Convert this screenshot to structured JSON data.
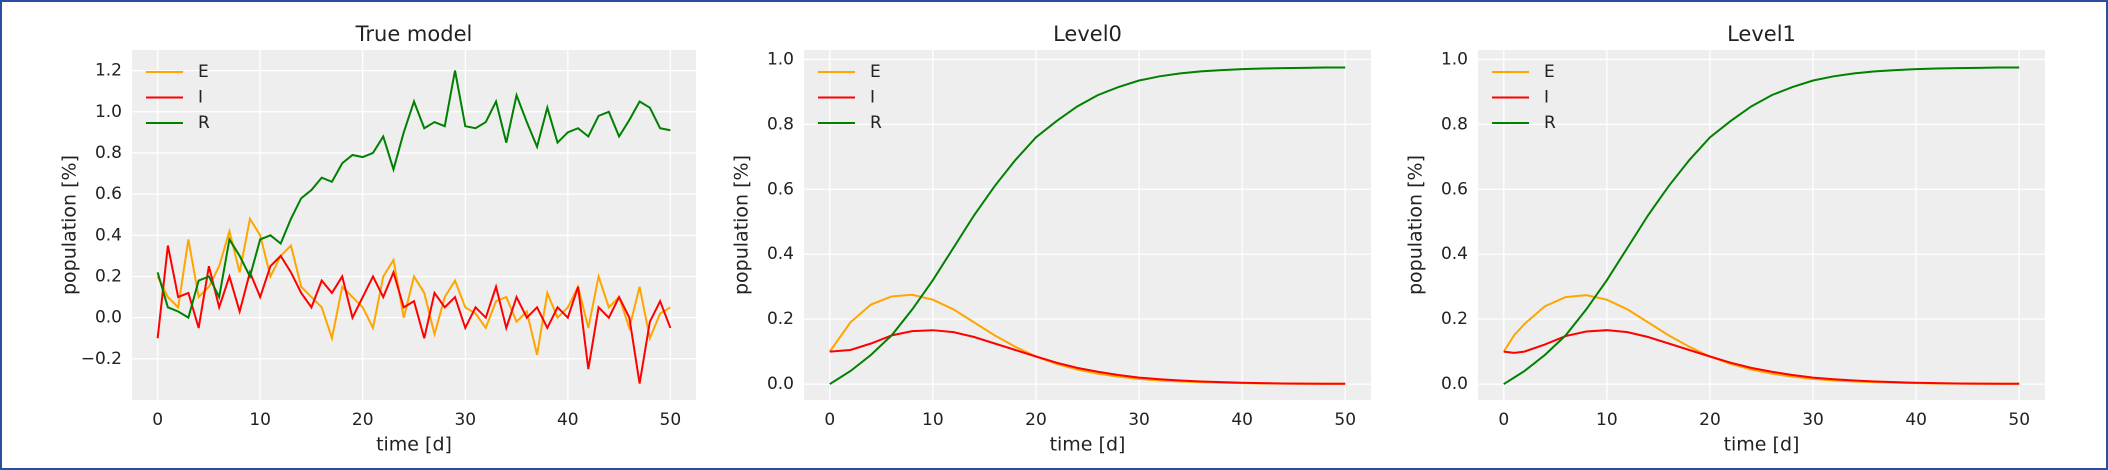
{
  "chart_data": [
    {
      "type": "line",
      "title": "True model",
      "xlabel": "time [d]",
      "ylabel": "population [%]",
      "x": [
        0,
        1,
        2,
        3,
        4,
        5,
        6,
        7,
        8,
        9,
        10,
        11,
        12,
        13,
        14,
        15,
        16,
        17,
        18,
        19,
        20,
        21,
        22,
        23,
        24,
        25,
        26,
        27,
        28,
        29,
        30,
        31,
        32,
        33,
        34,
        35,
        36,
        37,
        38,
        39,
        40,
        41,
        42,
        43,
        44,
        45,
        46,
        47,
        48,
        49,
        50
      ],
      "series": [
        {
          "name": "E",
          "color": "#ffa500",
          "values": [
            0.2,
            0.1,
            0.05,
            0.38,
            0.1,
            0.15,
            0.25,
            0.42,
            0.22,
            0.48,
            0.4,
            0.2,
            0.3,
            0.35,
            0.15,
            0.1,
            0.05,
            -0.1,
            0.15,
            0.1,
            0.05,
            -0.05,
            0.2,
            0.28,
            0.0,
            0.2,
            0.12,
            -0.08,
            0.1,
            0.18,
            0.05,
            0.02,
            -0.05,
            0.08,
            0.1,
            -0.02,
            0.03,
            -0.18,
            0.12,
            0.0,
            0.05,
            0.15,
            -0.05,
            0.2,
            0.05,
            0.1,
            -0.05,
            0.15,
            -0.1,
            0.02,
            0.05
          ]
        },
        {
          "name": "I",
          "color": "#ff0000",
          "values": [
            -0.1,
            0.35,
            0.1,
            0.12,
            -0.05,
            0.25,
            0.05,
            0.2,
            0.03,
            0.22,
            0.1,
            0.25,
            0.3,
            0.22,
            0.12,
            0.05,
            0.18,
            0.12,
            0.2,
            0.0,
            0.1,
            0.2,
            0.1,
            0.22,
            0.05,
            0.08,
            -0.1,
            0.12,
            0.05,
            0.1,
            -0.05,
            0.05,
            0.0,
            0.15,
            -0.05,
            0.1,
            0.0,
            0.05,
            -0.05,
            0.05,
            0.0,
            0.15,
            -0.25,
            0.05,
            0.0,
            0.1,
            0.0,
            -0.32,
            -0.02,
            0.08,
            -0.05
          ]
        },
        {
          "name": "R",
          "color": "#008000",
          "values": [
            0.22,
            0.05,
            0.03,
            0.0,
            0.18,
            0.2,
            0.1,
            0.38,
            0.3,
            0.2,
            0.38,
            0.4,
            0.36,
            0.48,
            0.58,
            0.62,
            0.68,
            0.66,
            0.75,
            0.79,
            0.78,
            0.8,
            0.88,
            0.72,
            0.9,
            1.05,
            0.92,
            0.95,
            0.93,
            1.2,
            0.93,
            0.92,
            0.95,
            1.05,
            0.85,
            1.08,
            0.95,
            0.83,
            1.02,
            0.85,
            0.9,
            0.92,
            0.88,
            0.98,
            1.0,
            0.88,
            0.96,
            1.05,
            1.02,
            0.92,
            0.91
          ]
        }
      ],
      "xlim": [
        -2.5,
        52.5
      ],
      "ylim": [
        -0.4,
        1.3
      ],
      "xticks": [
        0,
        10,
        20,
        30,
        40,
        50
      ],
      "yticks": [
        {
          "value": -0.2,
          "label": "−0.2"
        },
        {
          "value": 0,
          "label": "0.0"
        },
        0.2,
        0.4,
        0.6,
        0.8,
        {
          "value": 1,
          "label": "1.0"
        },
        1.2
      ],
      "grid": true,
      "legend": "upper left"
    },
    {
      "type": "line",
      "title": "Level0",
      "xlabel": "time [d]",
      "ylabel": "population [%]",
      "x": [
        0,
        2,
        4,
        6,
        8,
        10,
        12,
        14,
        16,
        18,
        20,
        22,
        24,
        26,
        28,
        30,
        32,
        34,
        36,
        38,
        40,
        42,
        44,
        46,
        48,
        50
      ],
      "series": [
        {
          "name": "E",
          "color": "#ffa500",
          "values": [
            0.1,
            0.19,
            0.245,
            0.27,
            0.275,
            0.26,
            0.23,
            0.19,
            0.15,
            0.115,
            0.085,
            0.062,
            0.045,
            0.032,
            0.023,
            0.016,
            0.011,
            0.008,
            0.006,
            0.004,
            0.003,
            0.002,
            0.0015,
            0.001,
            0.001,
            0.001
          ]
        },
        {
          "name": "I",
          "color": "#ff0000",
          "values": [
            0.1,
            0.105,
            0.125,
            0.15,
            0.163,
            0.166,
            0.16,
            0.145,
            0.125,
            0.105,
            0.085,
            0.066,
            0.05,
            0.038,
            0.028,
            0.02,
            0.015,
            0.011,
            0.008,
            0.006,
            0.004,
            0.003,
            0.002,
            0.0015,
            0.001,
            0.001
          ]
        },
        {
          "name": "R",
          "color": "#008000",
          "values": [
            0,
            0.04,
            0.09,
            0.15,
            0.23,
            0.32,
            0.42,
            0.52,
            0.61,
            0.69,
            0.76,
            0.81,
            0.855,
            0.89,
            0.915,
            0.935,
            0.948,
            0.957,
            0.963,
            0.967,
            0.97,
            0.972,
            0.973,
            0.974,
            0.975,
            0.975
          ]
        }
      ],
      "xlim": [
        -2.5,
        52.5
      ],
      "ylim": [
        -0.049,
        1.029
      ],
      "xticks": [
        0,
        10,
        20,
        30,
        40,
        50
      ],
      "yticks": [
        {
          "value": 0,
          "label": "0.0"
        },
        0.2,
        0.4,
        0.6,
        0.8,
        {
          "value": 1,
          "label": "1.0"
        }
      ],
      "grid": true,
      "legend": "upper left"
    },
    {
      "type": "line",
      "title": "Level1",
      "xlabel": "time [d]",
      "ylabel": "population [%]",
      "x": [
        0,
        1,
        2,
        4,
        6,
        8,
        10,
        12,
        14,
        16,
        18,
        20,
        22,
        24,
        26,
        28,
        30,
        32,
        34,
        36,
        38,
        40,
        42,
        44,
        46,
        48,
        50
      ],
      "series": [
        {
          "name": "E",
          "color": "#ffa500",
          "values": [
            0.1,
            0.15,
            0.185,
            0.24,
            0.268,
            0.274,
            0.26,
            0.23,
            0.19,
            0.15,
            0.115,
            0.085,
            0.062,
            0.045,
            0.032,
            0.023,
            0.016,
            0.011,
            0.008,
            0.006,
            0.004,
            0.003,
            0.002,
            0.0015,
            0.001,
            0.001,
            0.001
          ]
        },
        {
          "name": "I",
          "color": "#ff0000",
          "values": [
            0.1,
            0.096,
            0.1,
            0.122,
            0.148,
            0.162,
            0.166,
            0.16,
            0.145,
            0.125,
            0.105,
            0.085,
            0.066,
            0.05,
            0.038,
            0.028,
            0.02,
            0.015,
            0.011,
            0.008,
            0.006,
            0.004,
            0.003,
            0.002,
            0.0015,
            0.001,
            0.001
          ]
        },
        {
          "name": "R",
          "color": "#008000",
          "values": [
            0,
            0.02,
            0.04,
            0.09,
            0.15,
            0.23,
            0.32,
            0.42,
            0.52,
            0.61,
            0.69,
            0.76,
            0.81,
            0.855,
            0.89,
            0.915,
            0.935,
            0.948,
            0.957,
            0.963,
            0.967,
            0.97,
            0.972,
            0.973,
            0.974,
            0.975,
            0.975
          ]
        }
      ],
      "xlim": [
        -2.5,
        52.5
      ],
      "ylim": [
        -0.049,
        1.029
      ],
      "xticks": [
        0,
        10,
        20,
        30,
        40,
        50
      ],
      "yticks": [
        {
          "value": 0,
          "label": "0.0"
        },
        0.2,
        0.4,
        0.6,
        0.8,
        {
          "value": 1,
          "label": "1.0"
        }
      ],
      "grid": true,
      "legend": "upper left"
    }
  ]
}
